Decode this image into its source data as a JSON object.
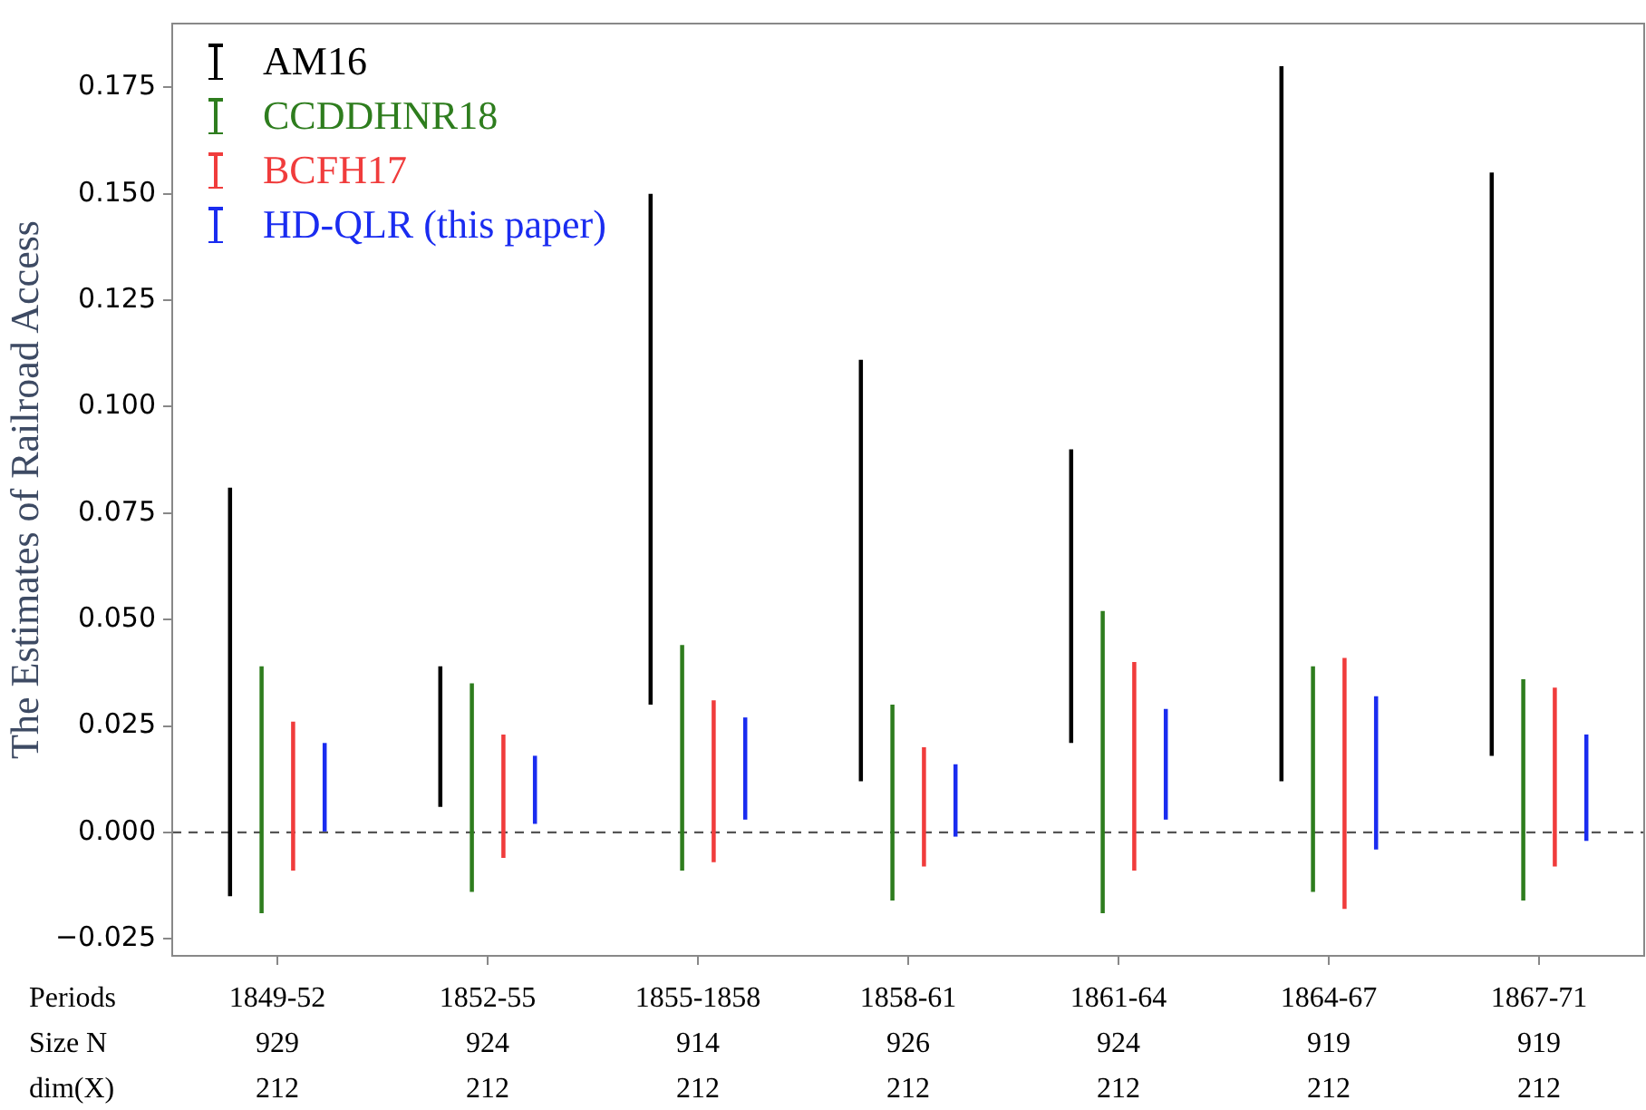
{
  "chart_data": {
    "type": "bar",
    "ylabel": "The Estimates of Railroad Access",
    "categories": [
      "1849-52",
      "1852-55",
      "1855-1858",
      "1858-61",
      "1861-64",
      "1864-67",
      "1867-71"
    ],
    "series": [
      {
        "name": "AM16",
        "color": "#000000",
        "base": [
          -0.015,
          0.006,
          0.03,
          0.012,
          0.021,
          0.012,
          0.018
        ],
        "values": [
          0.096,
          0.033,
          0.12,
          0.099,
          0.069,
          0.168,
          0.137
        ]
      },
      {
        "name": "CCDDHNR18",
        "color": "#2e7d1e",
        "base": [
          -0.019,
          -0.014,
          -0.009,
          -0.016,
          -0.019,
          -0.014,
          -0.016
        ],
        "values": [
          0.058,
          0.049,
          0.053,
          0.046,
          0.071,
          0.053,
          0.052
        ]
      },
      {
        "name": "BCFH17",
        "color": "#f03c3c",
        "base": [
          -0.009,
          -0.006,
          -0.007,
          -0.008,
          -0.009,
          -0.018,
          -0.008
        ],
        "values": [
          0.035,
          0.029,
          0.038,
          0.028,
          0.049,
          0.059,
          0.042
        ]
      },
      {
        "name": "HD-QLR (this paper)",
        "color": "#1a2cf0",
        "base": [
          0.0,
          0.002,
          0.003,
          -0.001,
          0.003,
          -0.004,
          -0.002
        ],
        "values": [
          0.021,
          0.016,
          0.024,
          0.017,
          0.026,
          0.036,
          0.025
        ]
      }
    ],
    "ylim": [
      -0.029,
      0.19
    ],
    "yticks": [
      {
        "value": -0.025,
        "label": "−0.025"
      },
      {
        "value": 0,
        "label": "0.000"
      },
      {
        "value": 0.025,
        "label": "0.025"
      },
      {
        "value": 0.05,
        "label": "0.050"
      },
      {
        "value": 0.075,
        "label": "0.075"
      },
      {
        "value": 0.1,
        "label": "0.100"
      },
      {
        "value": 0.125,
        "label": "0.125"
      },
      {
        "value": 0.15,
        "label": "0.150"
      },
      {
        "value": 0.175,
        "label": "0.175"
      }
    ],
    "ref_lines": [
      {
        "axis": "y",
        "value": 0,
        "color": "#555555",
        "line_style": "dashed"
      }
    ],
    "legend": "top left",
    "annotations": [
      "Periods",
      "Size N",
      "dim(X)",
      "929",
      "924",
      "914",
      "926",
      "924",
      "919",
      "919",
      "212",
      "212",
      "212",
      "212",
      "212",
      "212",
      "212"
    ]
  }
}
